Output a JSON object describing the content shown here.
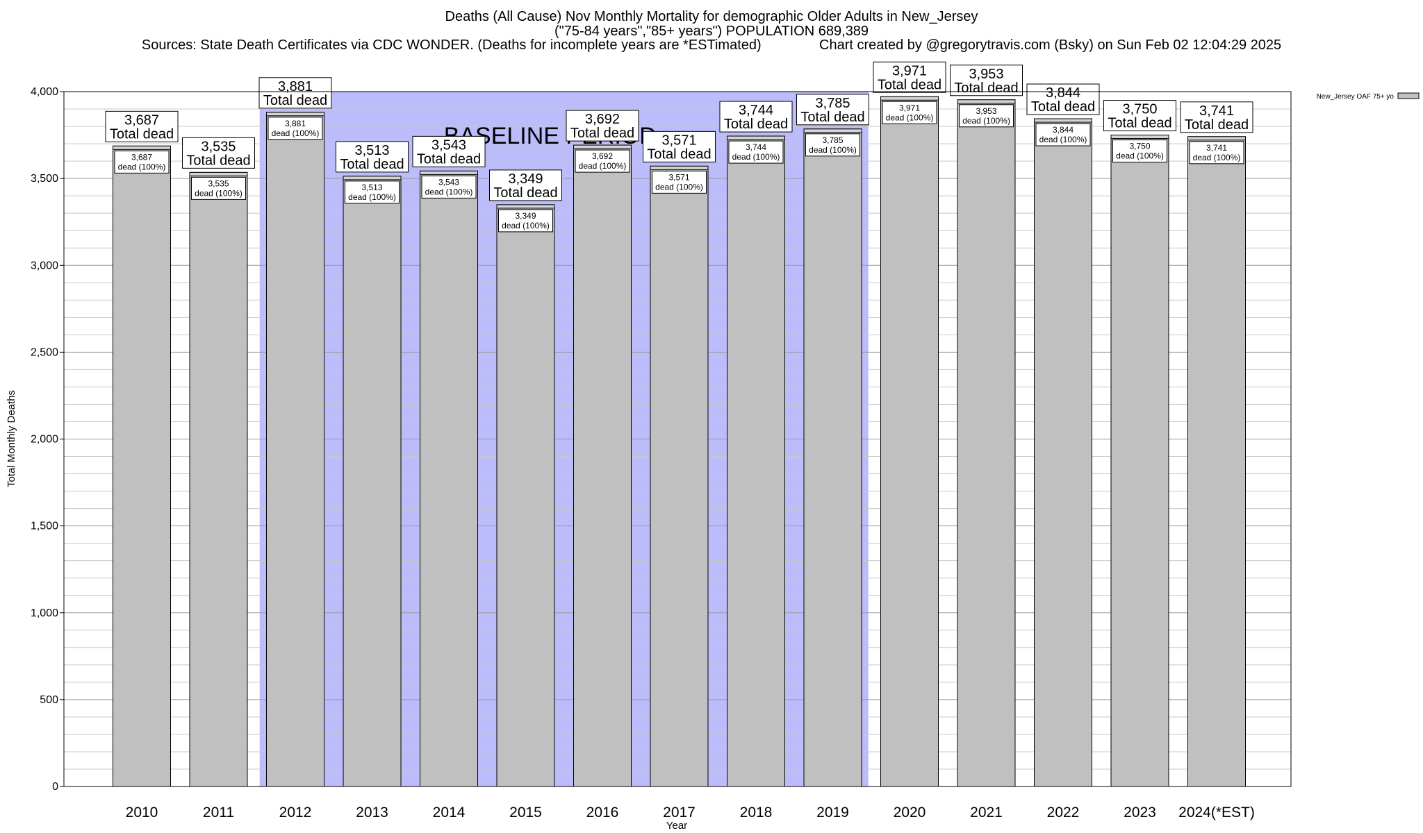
{
  "header": {
    "title": "Deaths (All Cause) Nov Monthly Mortality for demographic Older Adults in New_Jersey",
    "subtitle": "(\"75-84 years\",\"85+ years\") POPULATION 689,389",
    "sources": "Sources: State Death Certificates via CDC WONDER. (Deaths for incomplete years are *ESTimated)",
    "credit": "Chart created by @gregorytravis.com (Bsky) on Sun Feb 02 12:04:29 2025"
  },
  "chart_data": {
    "type": "bar",
    "categories": [
      "2010",
      "2011",
      "2012",
      "2013",
      "2014",
      "2015",
      "2016",
      "2017",
      "2018",
      "2019",
      "2020",
      "2021",
      "2022",
      "2023",
      "2024(*EST)"
    ],
    "series": [
      {
        "name": "New_Jersey OAF 75+ yo",
        "values": [
          3687,
          3535,
          3881,
          3513,
          3543,
          3349,
          3692,
          3571,
          3744,
          3785,
          3971,
          3953,
          3844,
          3750,
          3741
        ]
      }
    ],
    "value_labels": [
      "3,687",
      "3,535",
      "3,881",
      "3,513",
      "3,543",
      "3,349",
      "3,692",
      "3,571",
      "3,744",
      "3,785",
      "3,971",
      "3,953",
      "3,844",
      "3,750",
      "3,741"
    ],
    "top_label_suffix": "Total dead",
    "inner_label_suffix": "dead (100%)",
    "xlabel": "Year",
    "ylabel": "Total Monthly Deaths",
    "ylim": [
      0,
      4000
    ],
    "yticks": [
      0,
      500,
      1000,
      1500,
      2000,
      2500,
      3000,
      3500,
      4000
    ],
    "ytick_labels": [
      "0",
      "500",
      "1,000",
      "1,500",
      "2,000",
      "2,500",
      "3,000",
      "3,500",
      "4,000"
    ],
    "baseline_period": {
      "label": "BASELINE PERIOD",
      "start": "2012",
      "end": "2019",
      "color": "#bcbcfb"
    },
    "grid": true,
    "legend_position": "top-right",
    "bar_color": "#c0c0c0"
  }
}
